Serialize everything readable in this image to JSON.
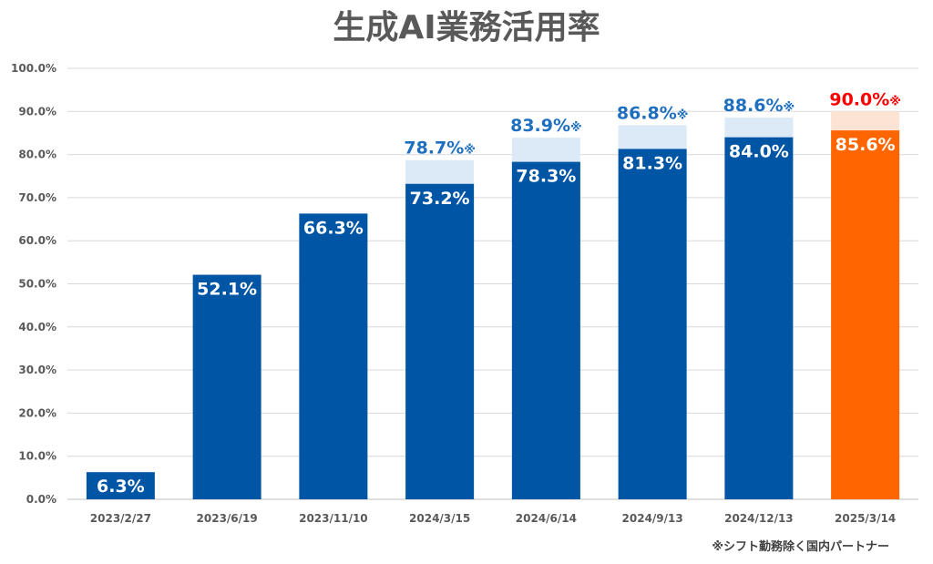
{
  "chart_data": {
    "type": "bar",
    "title": "生成AI業務活用率",
    "xlabel": "",
    "ylabel": "",
    "ylim": [
      0,
      100
    ],
    "yticks": [
      "0.0%",
      "10.0%",
      "20.0%",
      "30.0%",
      "40.0%",
      "50.0%",
      "60.0%",
      "70.0%",
      "80.0%",
      "90.0%",
      "100.0%"
    ],
    "grid": true,
    "categories": [
      "2023/2/27",
      "2023/6/19",
      "2023/11/10",
      "2024/3/15",
      "2024/6/14",
      "2024/9/13",
      "2024/12/13",
      "2025/3/14"
    ],
    "series": [
      {
        "values": [
          6.3,
          52.1,
          66.3,
          73.2,
          78.3,
          81.3,
          84.0,
          85.6
        ],
        "labels": [
          "6.3%",
          "52.1%",
          "66.3%",
          "73.2%",
          "78.3%",
          "81.3%",
          "84.0%",
          "85.6%"
        ]
      },
      {
        "values": [
          null,
          null,
          null,
          78.7,
          83.9,
          86.8,
          88.6,
          90.0
        ],
        "labels": [
          "",
          "",
          "",
          "78.7%",
          "83.9%",
          "86.8%",
          "88.6%",
          "90.0%"
        ],
        "marker": "※"
      }
    ],
    "colors": {
      "bar": "#0055a5",
      "bar_light": "#dce9f6",
      "highlight": "#ff6600",
      "highlight_light": "#fde3d3",
      "label_blue": "#1f6fc0",
      "label_red": "#ff0000"
    },
    "highlight_index": 7,
    "footnote": "※シフト勤務除く国内パートナー"
  }
}
